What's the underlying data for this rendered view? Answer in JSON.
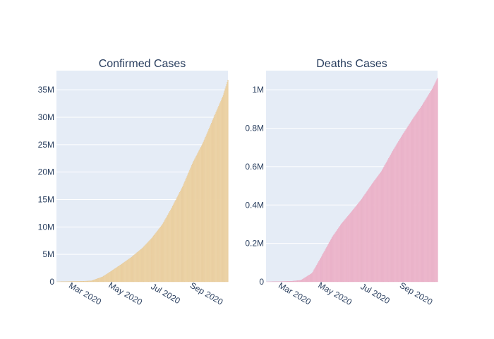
{
  "colors": {
    "plot_bg": "#e5ecf6",
    "grid": "#ffffff",
    "text": "#2a3f5f"
  },
  "chart_data": [
    {
      "type": "bar",
      "title": "Confirmed Cases",
      "xlabel": "",
      "ylabel": "",
      "color": "#f0d9b0",
      "stroke_color": "#e3c48f",
      "x_range": [
        "2020-01-22",
        "2020-10-08"
      ],
      "ylim": [
        0,
        38500000
      ],
      "x_ticks": [
        {
          "date": "2020-03-01",
          "label": "Mar 2020"
        },
        {
          "date": "2020-05-01",
          "label": "May 2020"
        },
        {
          "date": "2020-07-01",
          "label": "Jul 2020"
        },
        {
          "date": "2020-09-01",
          "label": "Sep 2020"
        }
      ],
      "y_ticks": [
        {
          "value": 0,
          "label": "0"
        },
        {
          "value": 5000000,
          "label": "5M"
        },
        {
          "value": 10000000,
          "label": "10M"
        },
        {
          "value": 15000000,
          "label": "15M"
        },
        {
          "value": 20000000,
          "label": "20M"
        },
        {
          "value": 25000000,
          "label": "25M"
        },
        {
          "value": 30000000,
          "label": "30M"
        },
        {
          "value": 35000000,
          "label": "35M"
        }
      ],
      "points": [
        {
          "date": "2020-01-22",
          "value": 0
        },
        {
          "date": "2020-02-15",
          "value": 70000
        },
        {
          "date": "2020-03-01",
          "value": 90000
        },
        {
          "date": "2020-03-15",
          "value": 170000
        },
        {
          "date": "2020-04-01",
          "value": 900000
        },
        {
          "date": "2020-04-15",
          "value": 2000000
        },
        {
          "date": "2020-05-01",
          "value": 3300000
        },
        {
          "date": "2020-05-15",
          "value": 4500000
        },
        {
          "date": "2020-06-01",
          "value": 6200000
        },
        {
          "date": "2020-06-15",
          "value": 8000000
        },
        {
          "date": "2020-07-01",
          "value": 10500000
        },
        {
          "date": "2020-07-15",
          "value": 13500000
        },
        {
          "date": "2020-08-01",
          "value": 17500000
        },
        {
          "date": "2020-08-15",
          "value": 21500000
        },
        {
          "date": "2020-09-01",
          "value": 25500000
        },
        {
          "date": "2020-09-15",
          "value": 29500000
        },
        {
          "date": "2020-10-01",
          "value": 34000000
        },
        {
          "date": "2020-10-08",
          "value": 36800000
        }
      ]
    },
    {
      "type": "bar",
      "title": "Deaths Cases",
      "xlabel": "",
      "ylabel": "",
      "color": "#f0bfd2",
      "stroke_color": "#e4a5bf",
      "x_range": [
        "2020-01-22",
        "2020-10-08"
      ],
      "ylim": [
        0,
        1100000
      ],
      "x_ticks": [
        {
          "date": "2020-03-01",
          "label": "Mar 2020"
        },
        {
          "date": "2020-05-01",
          "label": "May 2020"
        },
        {
          "date": "2020-07-01",
          "label": "Jul 2020"
        },
        {
          "date": "2020-09-01",
          "label": "Sep 2020"
        }
      ],
      "y_ticks": [
        {
          "value": 0,
          "label": "0"
        },
        {
          "value": 200000,
          "label": "0.2M"
        },
        {
          "value": 400000,
          "label": "0.4M"
        },
        {
          "value": 600000,
          "label": "0.6M"
        },
        {
          "value": 800000,
          "label": "0.8M"
        },
        {
          "value": 1000000,
          "label": "1M"
        }
      ],
      "points": [
        {
          "date": "2020-01-22",
          "value": 0
        },
        {
          "date": "2020-02-15",
          "value": 1500
        },
        {
          "date": "2020-03-01",
          "value": 3000
        },
        {
          "date": "2020-03-15",
          "value": 8000
        },
        {
          "date": "2020-04-01",
          "value": 45000
        },
        {
          "date": "2020-04-15",
          "value": 130000
        },
        {
          "date": "2020-05-01",
          "value": 230000
        },
        {
          "date": "2020-05-15",
          "value": 300000
        },
        {
          "date": "2020-06-01",
          "value": 370000
        },
        {
          "date": "2020-06-15",
          "value": 430000
        },
        {
          "date": "2020-07-01",
          "value": 510000
        },
        {
          "date": "2020-07-15",
          "value": 575000
        },
        {
          "date": "2020-08-01",
          "value": 680000
        },
        {
          "date": "2020-08-15",
          "value": 760000
        },
        {
          "date": "2020-09-01",
          "value": 850000
        },
        {
          "date": "2020-09-15",
          "value": 920000
        },
        {
          "date": "2020-10-01",
          "value": 1010000
        },
        {
          "date": "2020-10-08",
          "value": 1060000
        }
      ]
    }
  ]
}
